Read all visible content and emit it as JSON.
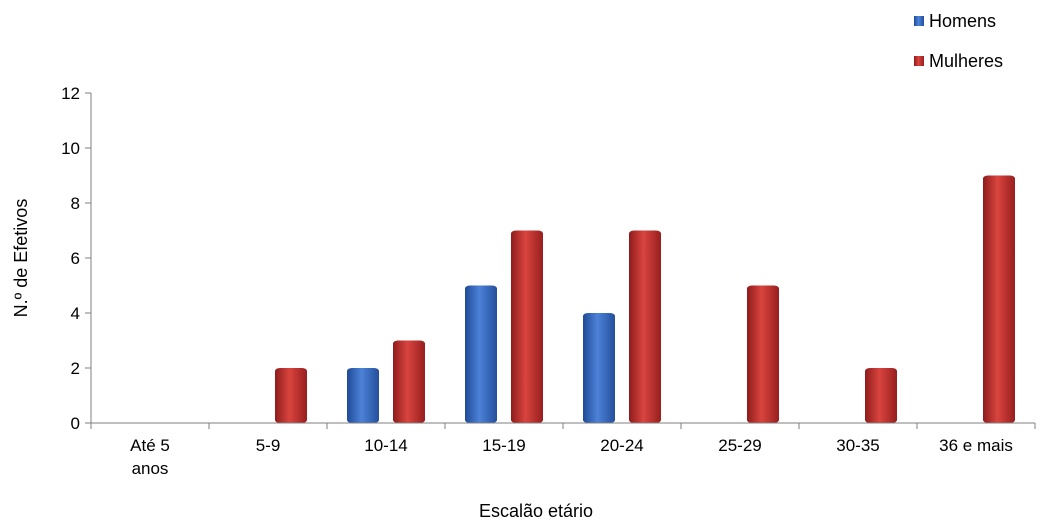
{
  "chart_data": {
    "type": "bar",
    "categories": [
      [
        "Até 5",
        "anos"
      ],
      [
        "5-9"
      ],
      [
        "10-14"
      ],
      [
        "15-19"
      ],
      [
        "20-24"
      ],
      [
        "25-29"
      ],
      [
        "30-35"
      ],
      [
        "36 e mais"
      ]
    ],
    "series": [
      {
        "name": "Homens",
        "values": [
          0,
          0,
          2,
          5,
          4,
          0,
          0,
          0
        ],
        "color": "#3a6cc4"
      },
      {
        "name": "Mulheres",
        "values": [
          0,
          2,
          3,
          7,
          7,
          5,
          2,
          9
        ],
        "color": "#c0312f"
      }
    ],
    "xlabel": "Escalão etário",
    "ylabel": "N.º de Efetivos",
    "ylim": [
      0,
      12
    ],
    "yticks": [
      "0",
      "2",
      "4",
      "6",
      "8",
      "10",
      "12"
    ],
    "grid": false,
    "legend": "top-right"
  }
}
